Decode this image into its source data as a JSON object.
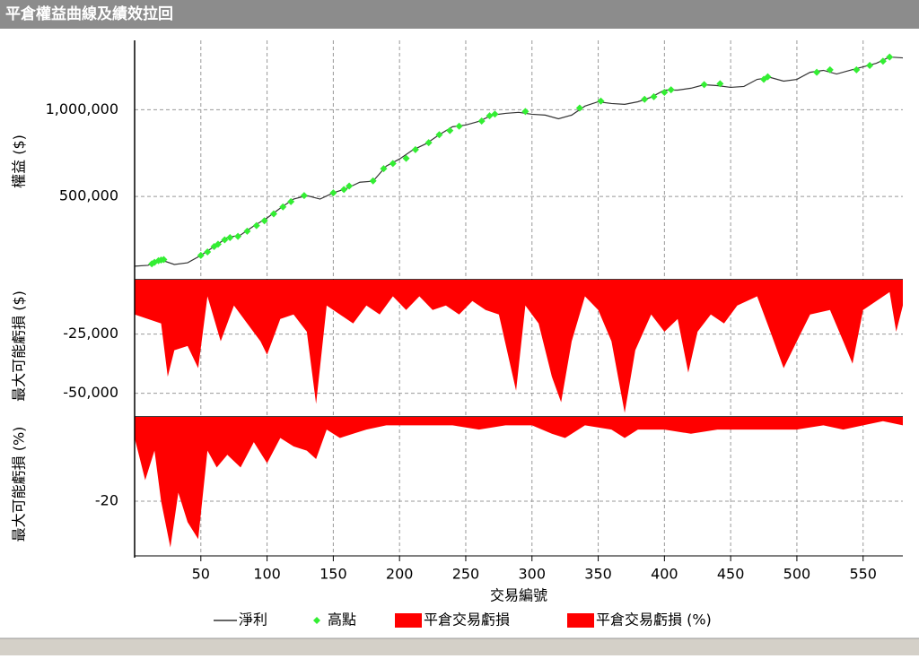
{
  "chart_data": [
    {
      "type": "line",
      "title": "平倉權益曲線及績效拉回",
      "ylabel": "權益 ($)",
      "xlim": [
        0,
        580
      ],
      "ylim": [
        20000,
        1400000
      ],
      "grid": true,
      "yticks": [
        {
          "value": 500000,
          "label": "500,000"
        },
        {
          "value": 1000000,
          "label": "1,000,000"
        }
      ],
      "series": [
        {
          "name": "淨利",
          "color": "#333333",
          "type": "line",
          "x": [
            0,
            10,
            20,
            30,
            40,
            50,
            60,
            70,
            80,
            90,
            100,
            110,
            120,
            130,
            140,
            150,
            160,
            170,
            180,
            190,
            200,
            210,
            220,
            230,
            240,
            250,
            260,
            270,
            280,
            290,
            300,
            310,
            320,
            330,
            340,
            350,
            360,
            370,
            380,
            390,
            400,
            410,
            420,
            430,
            440,
            450,
            460,
            470,
            480,
            490,
            500,
            510,
            520,
            530,
            540,
            550,
            560,
            570,
            580
          ],
          "values": [
            98000,
            103000,
            134000,
            108000,
            118000,
            160000,
            211000,
            263000,
            278000,
            330000,
            376000,
            433000,
            485000,
            505000,
            485000,
            521000,
            546000,
            582000,
            588000,
            675000,
            716000,
            768000,
            804000,
            856000,
            902000,
            912000,
            933000,
            969000,
            979000,
            985000,
            974000,
            969000,
            948000,
            969000,
            1021000,
            1046000,
            1036000,
            1031000,
            1046000,
            1072000,
            1113000,
            1113000,
            1124000,
            1144000,
            1139000,
            1129000,
            1134000,
            1175000,
            1186000,
            1165000,
            1175000,
            1216000,
            1227000,
            1206000,
            1227000,
            1247000,
            1268000,
            1304000,
            1299000
          ]
        },
        {
          "name": "高點",
          "color": "#33ee33",
          "type": "scatter",
          "x": [
            13,
            15,
            18,
            20,
            22,
            50,
            55,
            60,
            63,
            68,
            72,
            78,
            85,
            92,
            98,
            105,
            112,
            118,
            128,
            150,
            158,
            162,
            180,
            188,
            195,
            205,
            212,
            222,
            230,
            238,
            245,
            262,
            268,
            272,
            295,
            336,
            352,
            385,
            392,
            400,
            405,
            430,
            442,
            475,
            478,
            515,
            525,
            545,
            555,
            565,
            570
          ],
          "values": [
            112000,
            120000,
            130000,
            134000,
            136000,
            160000,
            180000,
            211000,
            225000,
            250000,
            263000,
            270000,
            300000,
            332000,
            360000,
            400000,
            440000,
            470000,
            505000,
            521000,
            540000,
            560000,
            590000,
            660000,
            690000,
            720000,
            770000,
            810000,
            856000,
            880000,
            905000,
            935000,
            965000,
            975000,
            990000,
            1010000,
            1050000,
            1060000,
            1075000,
            1100000,
            1115000,
            1145000,
            1150000,
            1175000,
            1190000,
            1216000,
            1230000,
            1230000,
            1255000,
            1280000,
            1304000
          ]
        }
      ]
    },
    {
      "type": "area",
      "ylabel": "最大可能虧損 ($)",
      "xlim": [
        0,
        580
      ],
      "ylim": [
        -60000,
        -2000
      ],
      "grid": true,
      "yticks": [
        {
          "value": -50000,
          "label": "-50,000"
        },
        {
          "value": -25000,
          "label": "-25,000"
        }
      ],
      "series": [
        {
          "name": "平倉交易虧損",
          "color": "#ff0000",
          "x": [
            0,
            10,
            20,
            25,
            30,
            40,
            48,
            55,
            65,
            75,
            85,
            95,
            100,
            110,
            120,
            130,
            137,
            145,
            155,
            165,
            175,
            185,
            195,
            205,
            215,
            225,
            235,
            245,
            255,
            265,
            275,
            288,
            295,
            305,
            315,
            322,
            330,
            340,
            350,
            360,
            370,
            378,
            390,
            400,
            410,
            418,
            425,
            435,
            445,
            455,
            470,
            480,
            490,
            500,
            510,
            525,
            535,
            542,
            550,
            560,
            570,
            575,
            580
          ],
          "values": [
            -16700,
            -18600,
            -20500,
            -43000,
            -31800,
            -30000,
            -39400,
            -9000,
            -28000,
            -12900,
            -20500,
            -28000,
            -33700,
            -18600,
            -16700,
            -24000,
            -54500,
            -12900,
            -16700,
            -20500,
            -12900,
            -16700,
            -9000,
            -14800,
            -9000,
            -14800,
            -12900,
            -16700,
            -11000,
            -14800,
            -16700,
            -48900,
            -12900,
            -20500,
            -43000,
            -53800,
            -28000,
            -9000,
            -14800,
            -28000,
            -58300,
            -31800,
            -16700,
            -24000,
            -18600,
            -41300,
            -24000,
            -16700,
            -20500,
            -12900,
            -9000,
            -24000,
            -39400,
            -28000,
            -16700,
            -14800,
            -28000,
            -37500,
            -14800,
            -11000,
            -7200,
            -24000,
            -12900
          ]
        }
      ]
    },
    {
      "type": "area",
      "ylabel": "最大可能虧損 (%)",
      "xlabel": "交易編號",
      "xlim": [
        0,
        580
      ],
      "ylim": [
        -33,
        0
      ],
      "grid": true,
      "xticks": [
        50,
        100,
        150,
        200,
        250,
        300,
        350,
        400,
        450,
        500,
        550
      ],
      "yticks": [
        -20
      ],
      "series": [
        {
          "name": "平倉交易虧損 (%)",
          "color": "#ff0000",
          "x": [
            0,
            8,
            15,
            20,
            27,
            33,
            40,
            48,
            55,
            62,
            70,
            80,
            90,
            100,
            110,
            120,
            130,
            137,
            145,
            155,
            165,
            175,
            190,
            205,
            220,
            240,
            260,
            280,
            300,
            315,
            325,
            340,
            360,
            370,
            380,
            400,
            420,
            440,
            460,
            480,
            500,
            520,
            535,
            550,
            565,
            580
          ],
          "values": [
            -5,
            -15,
            -8,
            -20,
            -31,
            -18,
            -25,
            -29,
            -8,
            -12,
            -9,
            -12,
            -6,
            -11,
            -5,
            -7,
            -8,
            -10,
            -3,
            -5,
            -4,
            -3,
            -2,
            -2,
            -2,
            -2,
            -3,
            -2,
            -2,
            -4,
            -5,
            -2,
            -3,
            -5,
            -3,
            -3,
            -4,
            -3,
            -3,
            -3,
            -3,
            -2,
            -3,
            -2,
            -1,
            -2
          ]
        }
      ]
    }
  ]
}
